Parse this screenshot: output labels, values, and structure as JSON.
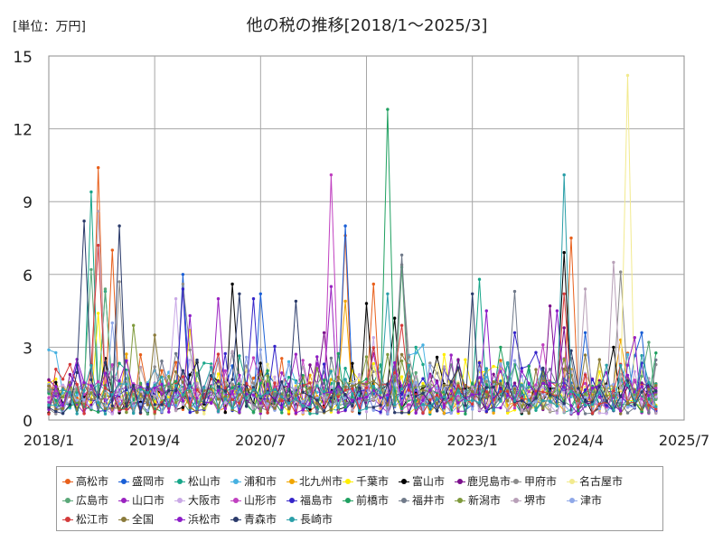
{
  "chart_data": {
    "type": "line",
    "title": "他の税の推移[2018/1～2025/3]",
    "unit_label": "[単位：万円]",
    "xlabel": "",
    "ylabel": "",
    "ylim": [
      0,
      15
    ],
    "y_ticks": [
      "0",
      "3",
      "6",
      "9",
      "12",
      "15"
    ],
    "x_ticks": [
      "2018/1",
      "2019/4",
      "2020/7",
      "2021/10",
      "2023/1",
      "2024/4",
      "2025/7"
    ],
    "x_range_months": [
      0,
      90
    ],
    "grid": true,
    "legend_position": "bottom",
    "series": [
      {
        "name": "高松市",
        "color": "#e8601c",
        "peaks": [
          [
            7,
            10.4
          ],
          [
            9,
            7.0
          ],
          [
            74,
            7.5
          ],
          [
            89,
            5.5
          ],
          [
            42,
            7.6
          ],
          [
            46,
            5.6
          ]
        ]
      },
      {
        "name": "盛岡市",
        "color": "#1a5fd6",
        "peaks": [
          [
            19,
            6.0
          ],
          [
            42,
            8.0
          ],
          [
            76,
            3.6
          ],
          [
            84,
            3.6
          ],
          [
            30,
            5.2
          ]
        ]
      },
      {
        "name": "松山市",
        "color": "#17a689",
        "peaks": [
          [
            6,
            9.4
          ],
          [
            8,
            5.3
          ],
          [
            52,
            3.0
          ],
          [
            61,
            5.8
          ]
        ]
      },
      {
        "name": "浦和市",
        "color": "#46b1e1",
        "peaks": [
          [
            34,
            2.4
          ],
          [
            70,
            2.1
          ]
        ]
      },
      {
        "name": "北九州市",
        "color": "#f0a500",
        "peaks": [
          [
            42,
            4.9
          ],
          [
            81,
            3.3
          ]
        ]
      },
      {
        "name": "千葉市",
        "color": "#ffee00",
        "peaks": [
          [
            7,
            4.4
          ],
          [
            20,
            3.7
          ],
          [
            61,
            2.0
          ]
        ]
      },
      {
        "name": "富山市",
        "color": "#000000",
        "peaks": [
          [
            26,
            5.6
          ],
          [
            45,
            4.8
          ],
          [
            49,
            4.2
          ],
          [
            73,
            6.9
          ],
          [
            80,
            3.0
          ]
        ]
      },
      {
        "name": "鹿児島市",
        "color": "#7b0f8c",
        "peaks": [
          [
            39,
            3.6
          ],
          [
            71,
            4.7
          ],
          [
            73,
            3.8
          ]
        ]
      },
      {
        "name": "甲府市",
        "color": "#8c8c8c",
        "peaks": [
          [
            10,
            5.7
          ],
          [
            19,
            5.6
          ],
          [
            50,
            6.4
          ],
          [
            81,
            6.1
          ]
        ]
      },
      {
        "name": "名古屋市",
        "color": "#f2ea8e",
        "peaks": [
          [
            82,
            14.2
          ],
          [
            31,
            2.3
          ]
        ]
      },
      {
        "name": "広島市",
        "color": "#5aa878",
        "peaks": [
          [
            6,
            6.2
          ],
          [
            8,
            5.4
          ],
          [
            50,
            6.3
          ],
          [
            85,
            3.2
          ]
        ]
      },
      {
        "name": "山口市",
        "color": "#9a22c0",
        "peaks": [
          [
            24,
            5.0
          ],
          [
            40,
            5.5
          ],
          [
            83,
            3.4
          ]
        ]
      },
      {
        "name": "大阪市",
        "color": "#c9a8e6",
        "peaks": [
          [
            18,
            5.0
          ],
          [
            46,
            3.4
          ]
        ]
      },
      {
        "name": "山形市",
        "color": "#c040c0",
        "peaks": [
          [
            40,
            10.1
          ],
          [
            70,
            3.1
          ]
        ]
      },
      {
        "name": "福島市",
        "color": "#3525c9",
        "peaks": [
          [
            19,
            5.4
          ],
          [
            29,
            5.0
          ],
          [
            66,
            3.6
          ]
        ]
      },
      {
        "name": "前橋市",
        "color": "#1fa060",
        "peaks": [
          [
            48,
            12.8
          ],
          [
            64,
            3.0
          ]
        ]
      },
      {
        "name": "福井市",
        "color": "#707a8a",
        "peaks": [
          [
            50,
            6.8
          ],
          [
            66,
            5.3
          ]
        ]
      },
      {
        "name": "新潟市",
        "color": "#7f9a3c",
        "peaks": [
          [
            12,
            3.9
          ],
          [
            48,
            2.7
          ]
        ]
      },
      {
        "name": "堺市",
        "color": "#b8a0b8",
        "peaks": [
          [
            7,
            8.6
          ],
          [
            76,
            5.4
          ],
          [
            80,
            6.5
          ]
        ]
      },
      {
        "name": "津市",
        "color": "#8fa8e8",
        "peaks": [
          [
            9,
            4.0
          ],
          [
            67,
            1.8
          ]
        ]
      },
      {
        "name": "松江市",
        "color": "#d43a3a",
        "peaks": [
          [
            7,
            7.2
          ],
          [
            73,
            5.2
          ],
          [
            50,
            3.9
          ]
        ]
      },
      {
        "name": "全国",
        "color": "#8a7a3a",
        "peaks": [
          [
            15,
            3.5
          ],
          [
            50,
            2.7
          ],
          [
            73,
            2.1
          ]
        ]
      },
      {
        "name": "浜松市",
        "color": "#8c1cc8",
        "peaks": [
          [
            20,
            4.3
          ],
          [
            62,
            4.5
          ],
          [
            72,
            4.5
          ]
        ]
      },
      {
        "name": "青森市",
        "color": "#2a3a6a",
        "peaks": [
          [
            5,
            8.2
          ],
          [
            10,
            8.0
          ],
          [
            27,
            5.2
          ],
          [
            35,
            4.9
          ],
          [
            60,
            5.2
          ]
        ]
      },
      {
        "name": "長崎市",
        "color": "#2a9fa8",
        "peaks": [
          [
            48,
            5.2
          ],
          [
            73,
            10.1
          ]
        ]
      }
    ]
  }
}
